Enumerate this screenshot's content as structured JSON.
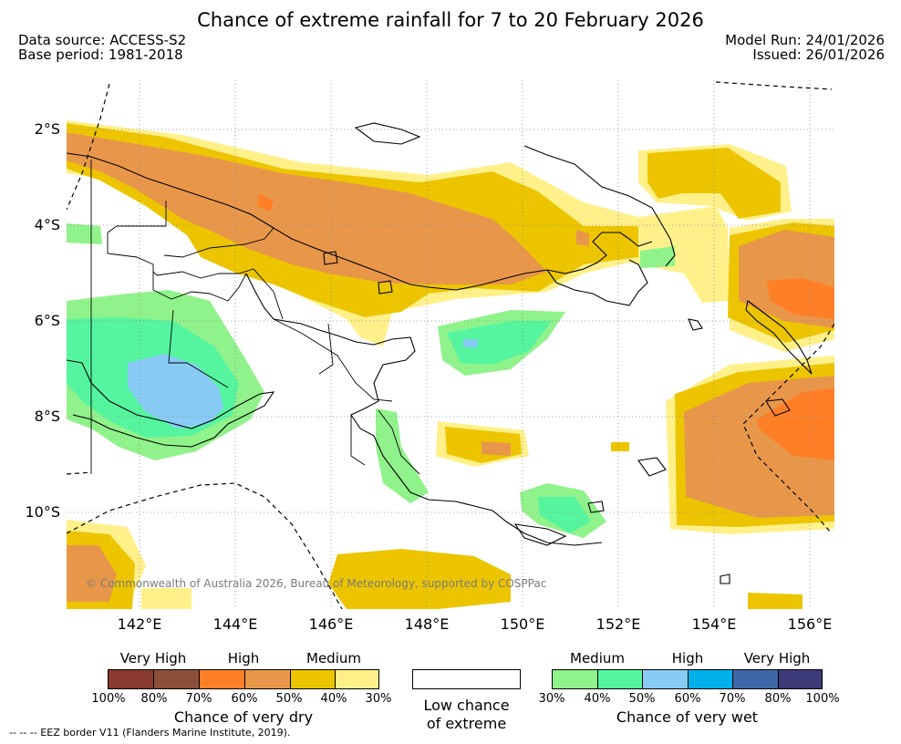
{
  "title": "Chance of extreme rainfall for 7 to 20 February 2026",
  "meta": {
    "data_source": "Data source: ACCESS-S2",
    "base_period": "Base period: 1981-2018",
    "model_run": "Model Run: 24/01/2026",
    "issued": "Issued: 26/01/2026"
  },
  "map": {
    "lat_labels": [
      "2°S",
      "4°S",
      "6°S",
      "8°S",
      "10°S"
    ],
    "lon_labels": [
      "142°E",
      "144°E",
      "146°E",
      "148°E",
      "150°E",
      "152°E",
      "154°E",
      "156°E"
    ],
    "copyright": "© Commonwealth of Australia 2026, Bureau of Meteorology, supported by COSPPac"
  },
  "legend": {
    "dry": {
      "headers": [
        "Very High",
        "High",
        "Medium"
      ],
      "colors": [
        "#8b3a2f",
        "#8b4f3a",
        "#ff7f27",
        "#e8974a",
        "#ecc500",
        "#fff08a"
      ],
      "ticks": [
        "100%",
        "80%",
        "70%",
        "60%",
        "50%",
        "40%",
        "30%"
      ],
      "caption": "Chance of very dry"
    },
    "low": {
      "caption_line1": "Low chance",
      "caption_line2": "of extreme"
    },
    "wet": {
      "headers": [
        "Medium",
        "High",
        "Very High"
      ],
      "colors": [
        "#90f28a",
        "#55f5a0",
        "#88ccf5",
        "#00b0ea",
        "#3d68a8",
        "#3d3a7a"
      ],
      "ticks": [
        "30%",
        "40%",
        "50%",
        "60%",
        "70%",
        "80%",
        "100%"
      ],
      "caption": "Chance of very wet"
    },
    "eez_note": "--  --  -- EEZ border V11 (Flanders Marine Institute, 2019)."
  }
}
